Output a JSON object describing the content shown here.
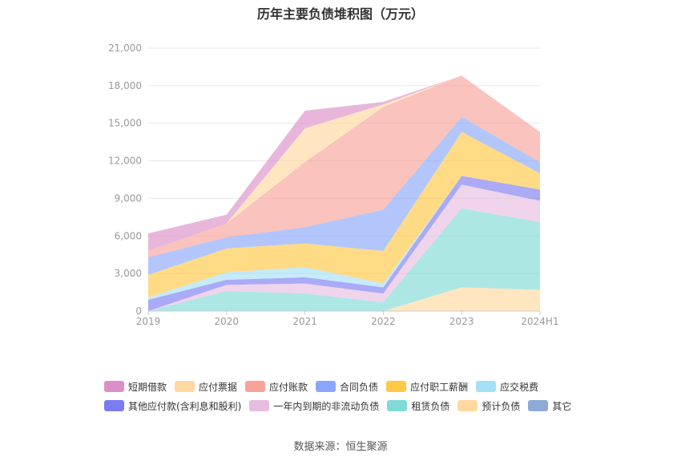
{
  "chart_data": {
    "type": "area",
    "title": "历年主要负债堆积图（万元）",
    "categories": [
      "2019",
      "2020",
      "2021",
      "2022",
      "2023",
      "2024H1"
    ],
    "ylim": [
      0,
      21000
    ],
    "yticks": [
      "0",
      "3,000",
      "6,000",
      "9,000",
      "12,000",
      "15,000",
      "18,000",
      "21,000"
    ],
    "grid": true,
    "legend_position": "bottom",
    "series": [
      {
        "name": "预计负债",
        "color": "#ffd99f",
        "values": [
          0,
          0,
          0,
          0,
          1900,
          1700
        ]
      },
      {
        "name": "租赁负债",
        "color": "#80dad6",
        "values": [
          0,
          1600,
          1400,
          700,
          6300,
          5400
        ]
      },
      {
        "name": "一年内到期的非流动负债",
        "color": "#e6bde0",
        "values": [
          0,
          500,
          800,
          700,
          1900,
          1700
        ]
      },
      {
        "name": "其他应付款(含利息和股利)",
        "color": "#7c7cf2",
        "values": [
          900,
          400,
          500,
          500,
          700,
          900
        ]
      },
      {
        "name": "应交税费",
        "color": "#a6dff7",
        "values": [
          200,
          600,
          800,
          300,
          0,
          0
        ]
      },
      {
        "name": "应付职工薪酬",
        "color": "#ffc845",
        "values": [
          1800,
          1900,
          1900,
          2600,
          3500,
          1300
        ]
      },
      {
        "name": "合同负债",
        "color": "#8aa7fb",
        "values": [
          1400,
          900,
          1300,
          3300,
          1200,
          900
        ]
      },
      {
        "name": "应付账款",
        "color": "#f8a39a",
        "values": [
          500,
          1100,
          5200,
          8200,
          3300,
          2400
        ]
      },
      {
        "name": "应付票据",
        "color": "#ffd99f",
        "values": [
          0,
          0,
          2700,
          200,
          0,
          0
        ]
      },
      {
        "name": "短期借款",
        "color": "#db8fc7",
        "values": [
          1400,
          700,
          1400,
          200,
          0,
          0
        ]
      },
      {
        "name": "其它",
        "color": "#8eaad6",
        "values": [
          0,
          0,
          0,
          0,
          0,
          0
        ]
      }
    ]
  },
  "legend_rows": [
    [
      {
        "name": "短期借款",
        "color": "#db8fc7"
      },
      {
        "name": "应付票据",
        "color": "#ffd99f"
      },
      {
        "name": "应付账款",
        "color": "#f8a39a"
      },
      {
        "name": "合同负债",
        "color": "#8aa7fb"
      },
      {
        "name": "应付职工薪酬",
        "color": "#ffc845"
      },
      {
        "name": "应交税费",
        "color": "#a6dff7"
      }
    ],
    [
      {
        "name": "其他应付款(含利息和股利)",
        "color": "#7c7cf2"
      },
      {
        "name": "一年内到期的非流动负债",
        "color": "#e6bde0"
      },
      {
        "name": "租赁负债",
        "color": "#80dad6"
      },
      {
        "name": "预计负债",
        "color": "#ffd99f"
      },
      {
        "name": "其它",
        "color": "#8eaad6"
      }
    ]
  ],
  "source": "数据来源：恒生聚源"
}
